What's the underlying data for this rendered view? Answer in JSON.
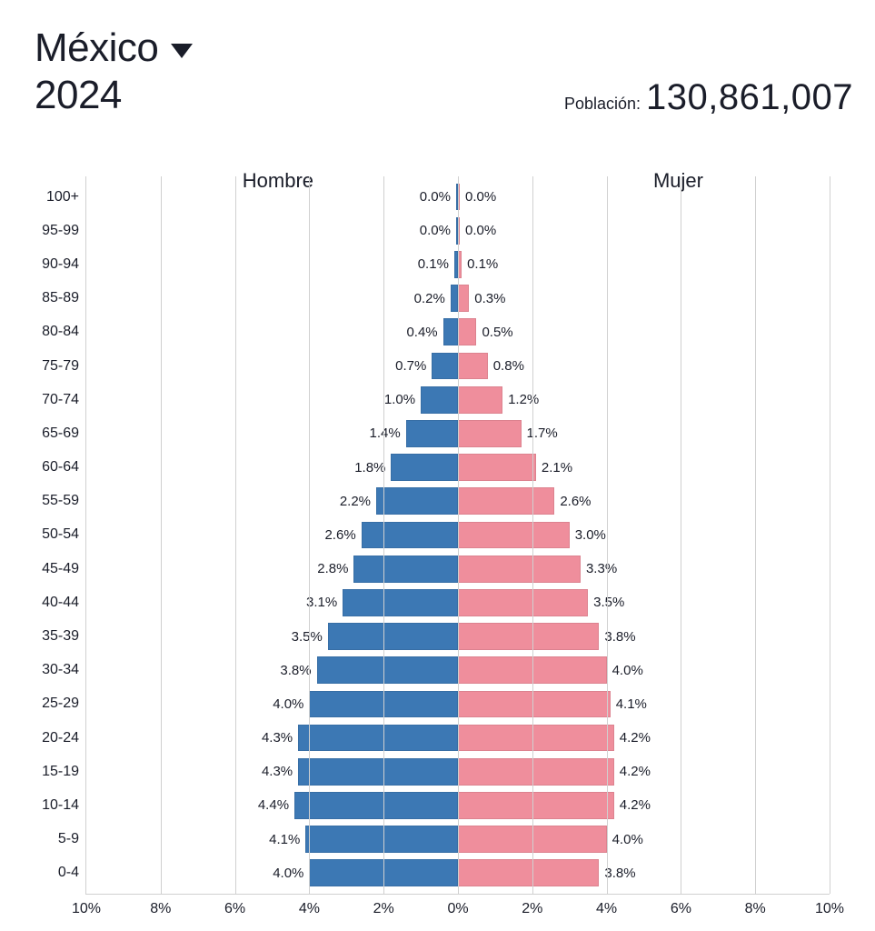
{
  "header": {
    "country": "México",
    "year": "2024",
    "population_label": "Población:",
    "population_value": "130,861,007"
  },
  "pyramid": {
    "type": "population-pyramid",
    "male_label": "Hombre",
    "female_label": "Mujer",
    "male_color": "#3c78b4",
    "female_color": "#ef8e9c",
    "background_color": "#ffffff",
    "grid_color": "#d0d0d0",
    "text_color": "#1a1d29",
    "x_max_percent": 10,
    "x_tick_step": 2,
    "x_ticks": [
      "10%",
      "8%",
      "6%",
      "4%",
      "2%",
      "0%",
      "2%",
      "4%",
      "6%",
      "8%",
      "10%"
    ],
    "bar_gap_ratio": 0.2,
    "age_bands_top_to_bottom": [
      {
        "label": "100+",
        "male": 0.0,
        "female": 0.0
      },
      {
        "label": "95-99",
        "male": 0.0,
        "female": 0.0
      },
      {
        "label": "90-94",
        "male": 0.1,
        "female": 0.1
      },
      {
        "label": "85-89",
        "male": 0.2,
        "female": 0.3
      },
      {
        "label": "80-84",
        "male": 0.4,
        "female": 0.5
      },
      {
        "label": "75-79",
        "male": 0.7,
        "female": 0.8
      },
      {
        "label": "70-74",
        "male": 1.0,
        "female": 1.2
      },
      {
        "label": "65-69",
        "male": 1.4,
        "female": 1.7
      },
      {
        "label": "60-64",
        "male": 1.8,
        "female": 2.1
      },
      {
        "label": "55-59",
        "male": 2.2,
        "female": 2.6
      },
      {
        "label": "50-54",
        "male": 2.6,
        "female": 3.0
      },
      {
        "label": "45-49",
        "male": 2.8,
        "female": 3.3
      },
      {
        "label": "40-44",
        "male": 3.1,
        "female": 3.5
      },
      {
        "label": "35-39",
        "male": 3.5,
        "female": 3.8
      },
      {
        "label": "30-34",
        "male": 3.8,
        "female": 4.0
      },
      {
        "label": "25-29",
        "male": 4.0,
        "female": 4.1
      },
      {
        "label": "20-24",
        "male": 4.3,
        "female": 4.2
      },
      {
        "label": "15-19",
        "male": 4.3,
        "female": 4.2
      },
      {
        "label": "10-14",
        "male": 4.4,
        "female": 4.2
      },
      {
        "label": "5-9",
        "male": 4.1,
        "female": 4.0
      },
      {
        "label": "0-4",
        "male": 4.0,
        "female": 3.8
      }
    ],
    "label_fontsize_pt": 12,
    "header_fontsize_pt": 33,
    "legend_fontsize_pt": 17
  }
}
